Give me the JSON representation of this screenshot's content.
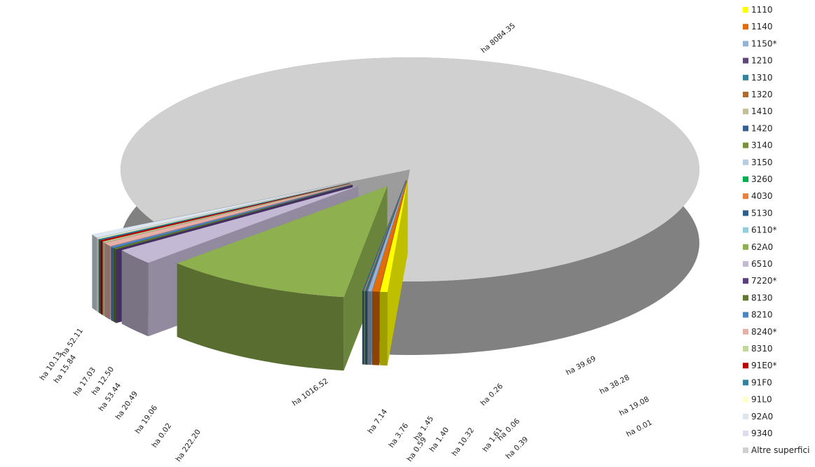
{
  "chart_data": {
    "type": "pie",
    "title": "",
    "legend_position": "right",
    "series": [
      {
        "name": "1110",
        "label": "ha 39.69",
        "value": 39.69,
        "color": "#ffff00"
      },
      {
        "name": "1140",
        "label": "ha 38.28",
        "value": 38.28,
        "color": "#e36c0a"
      },
      {
        "name": "1150*",
        "label": "ha 19.08",
        "value": 19.08,
        "color": "#95b3d7"
      },
      {
        "name": "1210",
        "label": "ha 0.01",
        "value": 0.01,
        "color": "#60497a"
      },
      {
        "name": "1310",
        "label": "ha 0.06",
        "value": 0.06,
        "color": "#31859b"
      },
      {
        "name": "1320",
        "label": "ha 0.39",
        "value": 0.39,
        "color": "#b06b2c"
      },
      {
        "name": "1410",
        "label": "ha 1.61",
        "value": 1.61,
        "color": "#c4bd97"
      },
      {
        "name": "1420",
        "label": "ha 10.32",
        "value": 10.32,
        "color": "#366092"
      },
      {
        "name": "3140",
        "label": "ha 1.40",
        "value": 1.4,
        "color": "#76933c"
      },
      {
        "name": "3150",
        "label": "ha 0.59",
        "value": 0.59,
        "color": "#b8cce4"
      },
      {
        "name": "3260",
        "label": "ha 1.45",
        "value": 1.45,
        "color": "#00b050"
      },
      {
        "name": "4030",
        "label": "ha 3.76",
        "value": 3.76,
        "color": "#e8803c"
      },
      {
        "name": "5130",
        "label": "ha 7.14",
        "value": 7.14,
        "color": "#2e5f8f"
      },
      {
        "name": "6110*",
        "label": "ha 0.26",
        "value": 0.26,
        "color": "#92cddc"
      },
      {
        "name": "62A0",
        "label": "ha 1016.52",
        "value": 1016.52,
        "color": "#8fb04f"
      },
      {
        "name": "6510",
        "label": "ha 222.20",
        "value": 222.2,
        "color": "#c3b9d5"
      },
      {
        "name": "7220*",
        "label": "ha 0.02",
        "value": 0.02,
        "color": "#5b3f80"
      },
      {
        "name": "8130",
        "label": "ha 19.06",
        "value": 19.06,
        "color": "#5e7a2e"
      },
      {
        "name": "8210",
        "label": "ha 20.49",
        "value": 20.49,
        "color": "#4a86c8"
      },
      {
        "name": "8240*",
        "label": "ha 53.44",
        "value": 53.44,
        "color": "#e6b0a8"
      },
      {
        "name": "8310",
        "label": "ha 12.50",
        "value": 12.5,
        "color": "#c3d69b"
      },
      {
        "name": "91E0*",
        "label": "ha 17.03",
        "value": 17.03,
        "color": "#c00000"
      },
      {
        "name": "91F0",
        "label": "ha 15.84",
        "value": 15.84,
        "color": "#31849b"
      },
      {
        "name": "91L0",
        "label": "ha 10.13",
        "value": 10.13,
        "color": "#ffffcc"
      },
      {
        "name": "92A0",
        "label": "ha 52.11",
        "value": 52.11,
        "color": "#dce6f1"
      },
      {
        "name": "9340",
        "label": "",
        "value": 0,
        "color": "#dedcee"
      },
      {
        "name": "Altre superfici",
        "label": "ha 8084.35",
        "value": 8084.35,
        "color": "#d0d0d0"
      }
    ]
  }
}
